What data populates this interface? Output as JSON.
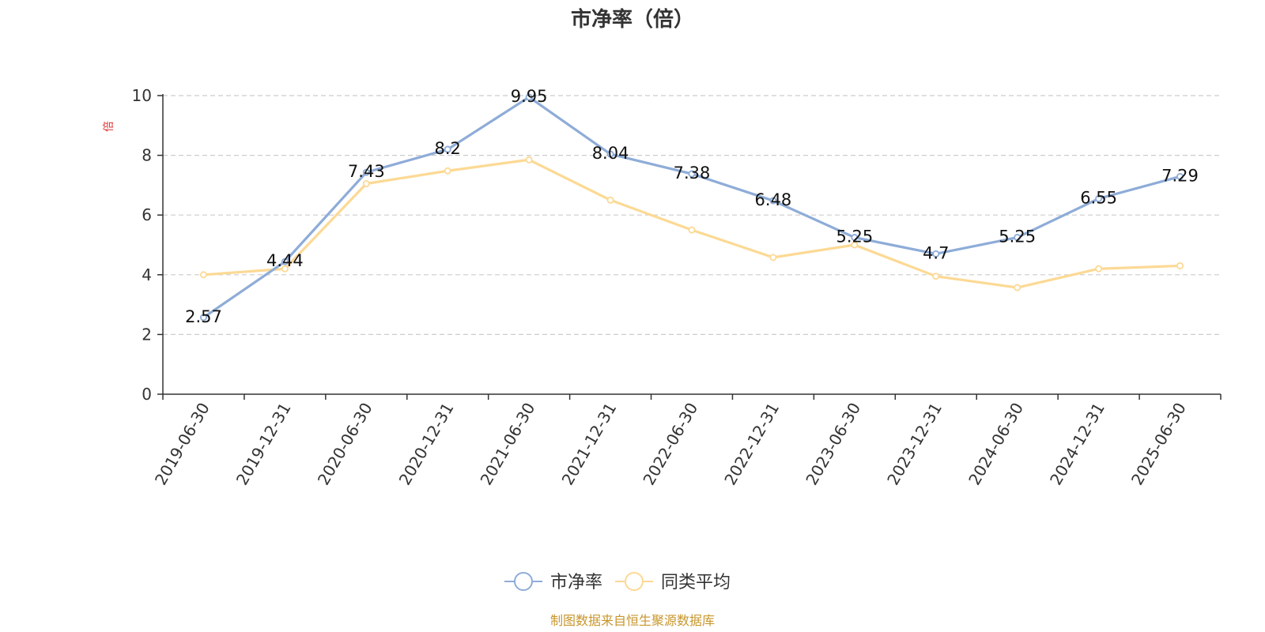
{
  "chart_data": {
    "type": "line",
    "title": "市净率（倍）",
    "ylabel": "倍",
    "xlabel": "",
    "ylim": [
      0,
      10
    ],
    "yticks": [
      0,
      2,
      4,
      6,
      8,
      10
    ],
    "grid": true,
    "legend_position": "bottom-center",
    "categories": [
      "2019-06-30",
      "2019-12-31",
      "2020-06-30",
      "2020-12-31",
      "2021-06-30",
      "2021-12-31",
      "2022-06-30",
      "2022-12-31",
      "2023-06-30",
      "2023-12-31",
      "2024-06-30",
      "2024-12-31",
      "2025-06-30"
    ],
    "series": [
      {
        "name": "市净率",
        "color": "#8eacd8",
        "values": [
          2.57,
          4.44,
          7.43,
          8.2,
          9.95,
          8.04,
          7.38,
          6.48,
          5.25,
          4.7,
          5.25,
          6.55,
          7.29
        ],
        "labels": [
          "2.57",
          "4.44",
          "7.43",
          "8.2",
          "9.95",
          "8.04",
          "7.38",
          "6.48",
          "5.25",
          "4.7",
          "5.25",
          "6.55",
          "7.29"
        ],
        "show_labels": true
      },
      {
        "name": "同类平均",
        "color": "#fcd994",
        "values": [
          4.0,
          4.2,
          7.05,
          7.48,
          7.85,
          6.5,
          5.5,
          4.58,
          5.0,
          3.95,
          3.57,
          4.2,
          4.3
        ],
        "show_labels": false
      }
    ]
  },
  "footer": {
    "source_text": "制图数据来自恒生聚源数据库",
    "color": "#c8962c"
  },
  "colors": {
    "ylabel": "#e03030",
    "axis": "#333333",
    "grid": "#cccccc"
  }
}
